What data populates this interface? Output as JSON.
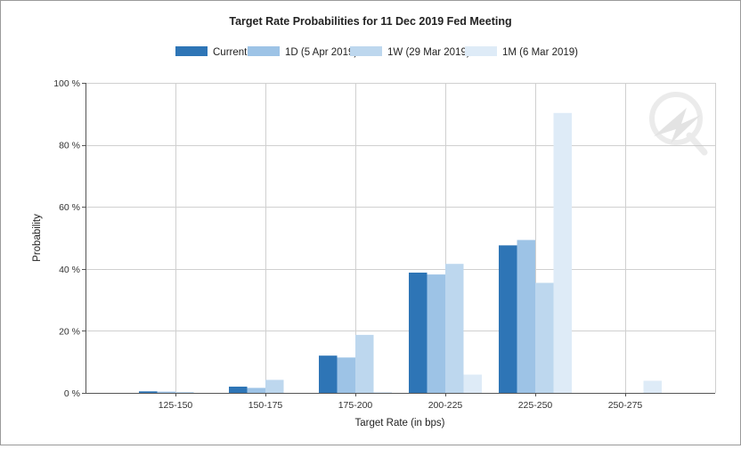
{
  "chart_data": {
    "type": "bar",
    "title": "Target Rate Probabilities for 11 Dec 2019 Fed Meeting",
    "xlabel": "Target Rate (in bps)",
    "ylabel": "Probability",
    "categories": [
      "125-150",
      "150-175",
      "175-200",
      "200-225",
      "225-250",
      "250-275"
    ],
    "ylim": [
      0,
      100
    ],
    "yticks": [
      0,
      20,
      40,
      60,
      80,
      100
    ],
    "ytick_labels": [
      "0 %",
      "20 %",
      "40 %",
      "60 %",
      "80 %",
      "100 %"
    ],
    "grid": true,
    "legend_position": "top",
    "series": [
      {
        "name": "Current",
        "color": "#2e75b6",
        "values": [
          0.5,
          2.0,
          12.0,
          38.8,
          47.6,
          0.0
        ]
      },
      {
        "name": "1D (5 Apr 2019)",
        "color": "#9dc3e6",
        "values": [
          0.4,
          1.6,
          11.4,
          38.2,
          49.3,
          0.0
        ]
      },
      {
        "name": "1W (29 Mar 2019)",
        "color": "#bdd7ee",
        "values": [
          0.3,
          4.2,
          18.7,
          41.6,
          35.5,
          0.0
        ]
      },
      {
        "name": "1M (6 Mar 2019)",
        "color": "#deebf7",
        "values": [
          0.0,
          0.0,
          0.3,
          5.9,
          90.3,
          3.9
        ]
      }
    ]
  }
}
